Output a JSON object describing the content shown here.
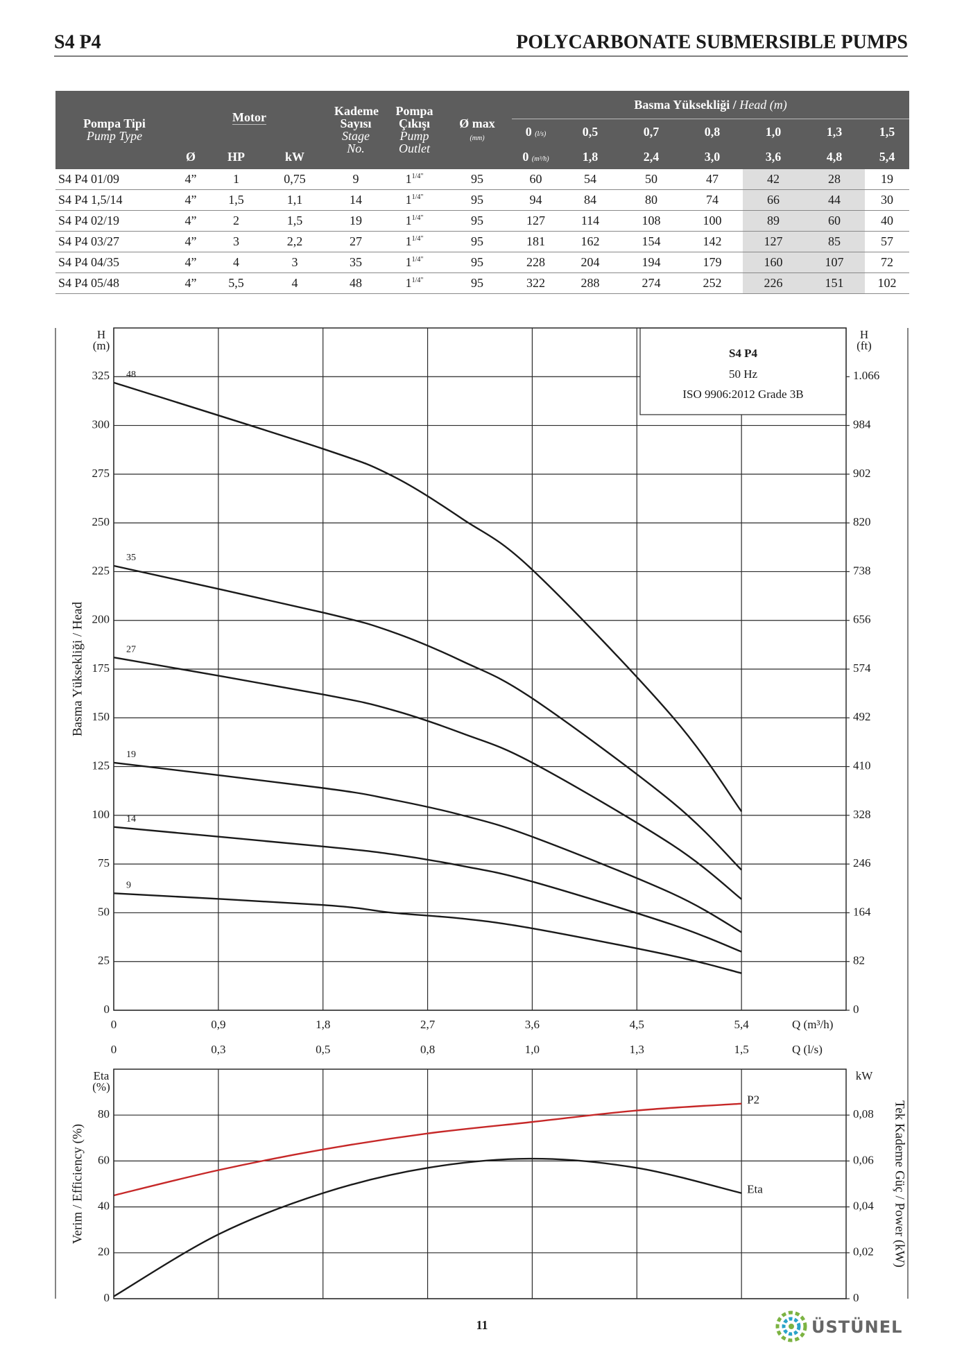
{
  "header": {
    "left": "S4 P4",
    "right": "POLYCARBONATE SUBMERSIBLE PUMPS"
  },
  "table": {
    "header": {
      "type": "Pompa Tipi",
      "type_en": "Pump Type",
      "motor": "Motor",
      "dia": "Ø",
      "hp": "HP",
      "kw": "kW",
      "stages": "Kademe Sayısı",
      "stages_en": "Stage No.",
      "outlet": "Pompa Çıkışı",
      "outlet_en": "Pump Outlet",
      "dmax": "Ø max",
      "dmax_unit": "(mm)",
      "head": "Basma Yüksekliği /",
      "head_en": "Head (m)",
      "flow_ls": [
        "0",
        "0,5",
        "0,7",
        "0,8",
        "1,0",
        "1,3",
        "1,5"
      ],
      "flow_ls_unit": "(l/s)",
      "flow_m3h": [
        "0",
        "1,8",
        "2,4",
        "3,0",
        "3,6",
        "4,8",
        "5,4"
      ],
      "flow_m3h_unit": "(m³/h)"
    },
    "rows": [
      {
        "type": "S4 P4 01/09",
        "dia": "4”",
        "hp": "1",
        "kw": "0,75",
        "stages": "9",
        "outlet": "1",
        "outlet_sup": "1/4\"",
        "dmax": "95",
        "heads": [
          "60",
          "54",
          "50",
          "47",
          "42",
          "28",
          "19"
        ]
      },
      {
        "type": "S4 P4 1,5/14",
        "dia": "4”",
        "hp": "1,5",
        "kw": "1,1",
        "stages": "14",
        "outlet": "1",
        "outlet_sup": "1/4\"",
        "dmax": "95",
        "heads": [
          "94",
          "84",
          "80",
          "74",
          "66",
          "44",
          "30"
        ]
      },
      {
        "type": "S4 P4 02/19",
        "dia": "4”",
        "hp": "2",
        "kw": "1,5",
        "stages": "19",
        "outlet": "1",
        "outlet_sup": "1/4\"",
        "dmax": "95",
        "heads": [
          "127",
          "114",
          "108",
          "100",
          "89",
          "60",
          "40"
        ]
      },
      {
        "type": "S4 P4 03/27",
        "dia": "4”",
        "hp": "3",
        "kw": "2,2",
        "stages": "27",
        "outlet": "1",
        "outlet_sup": "1/4\"",
        "dmax": "95",
        "heads": [
          "181",
          "162",
          "154",
          "142",
          "127",
          "85",
          "57"
        ]
      },
      {
        "type": "S4 P4 04/35",
        "dia": "4”",
        "hp": "4",
        "kw": "3",
        "stages": "35",
        "outlet": "1",
        "outlet_sup": "1/4\"",
        "dmax": "95",
        "heads": [
          "228",
          "204",
          "194",
          "179",
          "160",
          "107",
          "72"
        ]
      },
      {
        "type": "S4 P4 05/48",
        "dia": "4”",
        "hp": "5,5",
        "kw": "4",
        "stages": "48",
        "outlet": "1",
        "outlet_sup": "1/4\"",
        "dmax": "95",
        "heads": [
          "322",
          "288",
          "274",
          "252",
          "226",
          "151",
          "102"
        ]
      }
    ]
  },
  "chart_data": [
    {
      "type": "line",
      "grid": true,
      "annotation": {
        "title": "S4 P4",
        "lines": [
          "50 Hz",
          "ISO 9906:2012 Grade 3B"
        ]
      },
      "ylabel": "Basma Yüksekliği / Head",
      "yunit": [
        "H",
        "(m)"
      ],
      "y2unit": [
        "H",
        "(ft)"
      ],
      "xlabel": "Q (m³/h)",
      "x2label": "Q (l/s)",
      "xlim": [
        0,
        6.3
      ],
      "xticks": [
        0,
        {
          "value": 0.9,
          "label": "0,9"
        },
        {
          "value": 1.8,
          "label": "1,8"
        },
        {
          "value": 2.7,
          "label": "2,7"
        },
        {
          "value": 3.6,
          "label": "3,6"
        },
        {
          "value": 4.5,
          "label": "4,5"
        },
        {
          "value": 5.4,
          "label": "5,4"
        }
      ],
      "x2lim": [
        0,
        1.75
      ],
      "x2ticks": [
        0,
        {
          "value": 0.25,
          "label": "0,3"
        },
        {
          "value": 0.5,
          "label": "0,5"
        },
        {
          "value": 0.75,
          "label": "0,8"
        },
        {
          "value": 1.0,
          "label": "1,0"
        },
        {
          "value": 1.25,
          "label": "1,3"
        },
        {
          "value": 1.5,
          "label": "1,5"
        }
      ],
      "ylim": [
        0,
        350
      ],
      "yticks": [
        0,
        25,
        50,
        75,
        100,
        125,
        150,
        175,
        200,
        225,
        250,
        275,
        300,
        325
      ],
      "y2lim": [
        0,
        1148
      ],
      "y2ticks": [
        0,
        82,
        164,
        246,
        328,
        410,
        492,
        574,
        656,
        738,
        820,
        902,
        984,
        {
          "value": 1066,
          "label": "1.066"
        }
      ],
      "x": [
        0,
        1.8,
        2.4,
        3.0,
        3.6,
        4.8,
        5.4
      ],
      "series": [
        {
          "name": "48",
          "color": "#1a1a1a",
          "values": [
            322,
            288,
            274,
            252,
            226,
            151,
            102
          ]
        },
        {
          "name": "35",
          "color": "#1a1a1a",
          "values": [
            228,
            204,
            194,
            179,
            160,
            107,
            72
          ]
        },
        {
          "name": "27",
          "color": "#1a1a1a",
          "values": [
            181,
            162,
            154,
            142,
            127,
            85,
            57
          ]
        },
        {
          "name": "19",
          "color": "#1a1a1a",
          "values": [
            127,
            114,
            108,
            100,
            89,
            60,
            40
          ]
        },
        {
          "name": "14",
          "color": "#1a1a1a",
          "values": [
            94,
            84,
            80,
            74,
            66,
            44,
            30
          ]
        },
        {
          "name": "9",
          "color": "#1a1a1a",
          "values": [
            60,
            54,
            50,
            47,
            42,
            28,
            19
          ]
        }
      ]
    },
    {
      "type": "line",
      "grid": true,
      "xtick_labels": false,
      "ylabel": "Verim / Efficiency (%)",
      "yunit": [
        "Eta",
        "(%)"
      ],
      "y2label": "Tek Kademe Güç / Power (kW)",
      "y2unit": [
        "kW"
      ],
      "xlim": [
        0,
        6.3
      ],
      "xticks": [
        0,
        0.9,
        1.8,
        2.7,
        3.6,
        4.5,
        5.4
      ],
      "ylim": [
        0,
        100
      ],
      "yticks": [
        0,
        20,
        40,
        60,
        80
      ],
      "y2lim": [
        0,
        0.1
      ],
      "y2ticks": [
        0,
        {
          "value": 0.02,
          "label": "0,02"
        },
        {
          "value": 0.04,
          "label": "0,04"
        },
        {
          "value": 0.06,
          "label": "0,06"
        },
        {
          "value": 0.08,
          "label": "0,08"
        }
      ],
      "x": [
        0,
        0.9,
        1.8,
        2.7,
        3.6,
        4.5,
        5.4
      ],
      "series": [
        {
          "name": "P2",
          "color": "#c62828",
          "axis": "y2",
          "values": [
            0.045,
            0.056,
            0.065,
            0.072,
            0.077,
            0.082,
            0.085
          ]
        },
        {
          "name": "Eta",
          "color": "#1a1a1a",
          "values": [
            1,
            28,
            46,
            57,
            61,
            57,
            46
          ]
        }
      ]
    }
  ],
  "footer": {
    "page": "11",
    "brand": "ÜSTÜNEL"
  }
}
